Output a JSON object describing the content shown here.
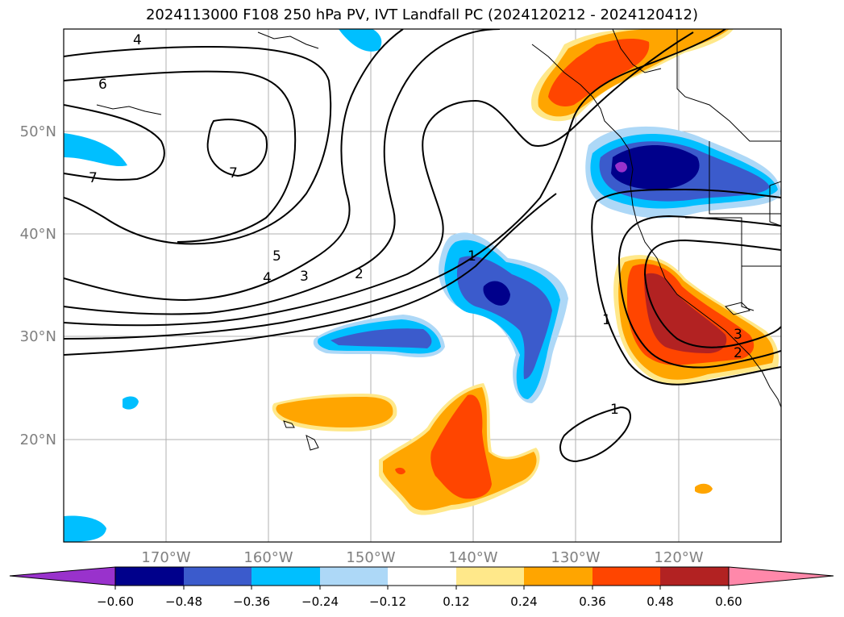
{
  "title": "2024113000 F108 250 hPa PV, IVT Landfall PC (2024120212 - 2024120412)",
  "map": {
    "lat_labels": [
      "50°N",
      "40°N",
      "30°N",
      "20°N"
    ],
    "lon_labels": [
      "170°W",
      "160°W",
      "150°W",
      "140°W",
      "130°W",
      "120°W"
    ],
    "lon_range": [
      -180,
      -110
    ],
    "lat_range": [
      10,
      60
    ],
    "grid": true
  },
  "pv_contour_labels": [
    "4",
    "6",
    "7",
    "7",
    "5",
    "4",
    "3",
    "2",
    "1",
    "1",
    "1",
    "3",
    "2"
  ],
  "colorbar": {
    "ticks": [
      "−0.60",
      "−0.48",
      "−0.36",
      "−0.24",
      "−0.12",
      "0.12",
      "0.24",
      "0.36",
      "0.48",
      "0.60"
    ],
    "colors": [
      "#9932cc",
      "#00008b",
      "#3b5bcc",
      "#00bfff",
      "#add8f7",
      "#ffffff",
      "#ffe88a",
      "#ffa500",
      "#ff4500",
      "#b22222",
      "#ff88aa"
    ]
  }
}
